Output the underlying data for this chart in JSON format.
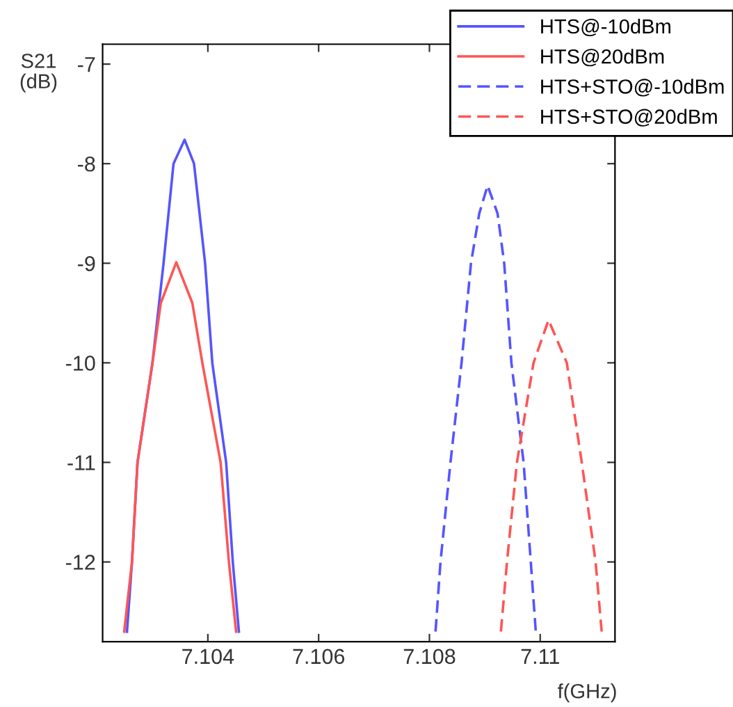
{
  "chart_data": {
    "type": "line",
    "xlabel": "f(GHz)",
    "ylabel": "S21\n(dB)",
    "xlim": [
      7.1021,
      7.11135
    ],
    "ylim": [
      -12.8,
      -6.8
    ],
    "xticks": [
      7.104,
      7.106,
      7.108,
      7.11
    ],
    "yticks": [
      -7,
      -8,
      -9,
      -10,
      -11,
      -12
    ],
    "grid": false,
    "legend": "top right",
    "series": [
      {
        "name": "HTS@-10dBm",
        "color": "#5555ff",
        "line_style": "solid",
        "x": [
          7.10254,
          7.10263,
          7.10273,
          7.103,
          7.1032,
          7.10338,
          7.10358,
          7.10375,
          7.10395,
          7.10408,
          7.10433,
          7.10445,
          7.10456
        ],
        "values": [
          -12.7,
          -12,
          -11,
          -10,
          -9,
          -8,
          -7.76,
          -8,
          -9,
          -10,
          -11,
          -12,
          -12.7
        ]
      },
      {
        "name": "HTS@20dBm",
        "color": "#ff5555",
        "line_style": "solid",
        "x": [
          7.10249,
          7.10263,
          7.10273,
          7.103,
          7.10315,
          7.10343,
          7.10372,
          7.1039,
          7.10423,
          7.10438,
          7.10451
        ],
        "values": [
          -12.7,
          -12,
          -11,
          -10,
          -9.4,
          -8.99,
          -9.4,
          -10,
          -11,
          -12,
          -12.7
        ]
      },
      {
        "name": "HTS+STO@-10dBm",
        "color": "#5555ff",
        "line_style": "dashed",
        "x": [
          7.10811,
          7.1082,
          7.10838,
          7.10858,
          7.10875,
          7.1089,
          7.10905,
          7.10923,
          7.10935,
          7.10948,
          7.1097,
          7.10983,
          7.10992
        ],
        "values": [
          -12.7,
          -12,
          -11,
          -10,
          -9,
          -8.5,
          -8.22,
          -8.5,
          -9,
          -10,
          -11,
          -12,
          -12.7
        ]
      },
      {
        "name": "HTS+STO@20dBm",
        "color": "#ff5555",
        "line_style": "dashed",
        "x": [
          7.10929,
          7.1094,
          7.10958,
          7.10988,
          7.11015,
          7.11048,
          7.11075,
          7.111,
          7.11111
        ],
        "values": [
          -12.7,
          -12,
          -11,
          -10,
          -9.57,
          -10,
          -11,
          -12,
          -12.7
        ]
      }
    ]
  }
}
